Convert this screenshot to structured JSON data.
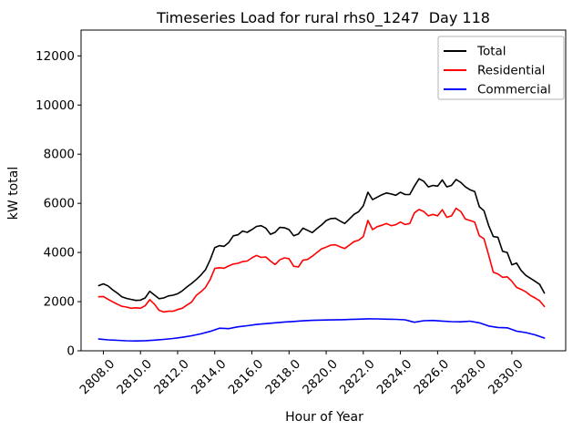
{
  "chart_data": {
    "type": "line",
    "title": "Timeseries Load for rural rhs0_1247  Day 118",
    "xlabel": "Hour of Year",
    "ylabel": "kW total",
    "xlim": [
      2806.8,
      2832.9
    ],
    "ylim": [
      0,
      13050
    ],
    "grid": false,
    "background": "#ffffff",
    "axes_color": "#000000",
    "xticks": {
      "values": [
        2808,
        2810,
        2812,
        2814,
        2816,
        2818,
        2820,
        2822,
        2824,
        2826,
        2828,
        2830
      ],
      "labels": [
        "2808.0",
        "2810.0",
        "2812.0",
        "2814.0",
        "2816.0",
        "2818.0",
        "2820.0",
        "2822.0",
        "2824.0",
        "2826.0",
        "2828.0",
        "2830.0"
      ],
      "rotation": 45
    },
    "yticks": {
      "values": [
        0,
        2000,
        4000,
        6000,
        8000,
        10000,
        12000
      ],
      "labels": [
        "0",
        "2000",
        "4000",
        "6000",
        "8000",
        "10000",
        "12000"
      ]
    },
    "legend": {
      "position": "upper right",
      "border_color": "#b3b3b3",
      "background": "#ffffff",
      "entries": [
        {
          "label": "Total",
          "color": "#000000"
        },
        {
          "label": "Residential",
          "color": "#ff0000"
        },
        {
          "label": "Commercial",
          "color": "#0000ff"
        }
      ]
    },
    "series": [
      {
        "name": "Total",
        "color": "#000000",
        "x_start": 2807.75,
        "x_step": 0.25,
        "values": [
          2650,
          2725,
          2640,
          2480,
          2350,
          2200,
          2130,
          2090,
          2050,
          2060,
          2150,
          2420,
          2270,
          2120,
          2150,
          2230,
          2260,
          2320,
          2440,
          2600,
          2740,
          2900,
          3080,
          3300,
          3700,
          4200,
          4280,
          4250,
          4400,
          4680,
          4720,
          4870,
          4820,
          4930,
          5060,
          5090,
          4990,
          4740,
          4820,
          5020,
          5010,
          4930,
          4680,
          4750,
          4990,
          4900,
          4810,
          4970,
          5120,
          5300,
          5380,
          5390,
          5280,
          5180,
          5360,
          5550,
          5660,
          5900,
          6450,
          6150,
          6250,
          6350,
          6420,
          6380,
          6330,
          6450,
          6360,
          6360,
          6700,
          7000,
          6900,
          6670,
          6730,
          6700,
          6950,
          6670,
          6730,
          6970,
          6850,
          6670,
          6550,
          6480,
          5860,
          5700,
          5100,
          4650,
          4620,
          4050,
          4000,
          3500,
          3570,
          3270,
          3070,
          2950,
          2830,
          2700,
          2350
        ]
      },
      {
        "name": "Residential",
        "color": "#ff0000",
        "x_start": 2807.75,
        "x_step": 0.25,
        "values": [
          2200,
          2210,
          2100,
          1990,
          1900,
          1810,
          1780,
          1730,
          1750,
          1730,
          1830,
          2080,
          1900,
          1650,
          1580,
          1610,
          1610,
          1680,
          1730,
          1860,
          1980,
          2250,
          2400,
          2580,
          2900,
          3350,
          3380,
          3360,
          3450,
          3530,
          3560,
          3630,
          3650,
          3780,
          3880,
          3800,
          3820,
          3650,
          3510,
          3700,
          3780,
          3750,
          3440,
          3410,
          3690,
          3720,
          3850,
          4000,
          4150,
          4220,
          4300,
          4310,
          4230,
          4160,
          4300,
          4440,
          4500,
          4650,
          5300,
          4930,
          5050,
          5110,
          5180,
          5090,
          5130,
          5240,
          5140,
          5180,
          5610,
          5750,
          5670,
          5490,
          5550,
          5490,
          5740,
          5430,
          5490,
          5800,
          5670,
          5360,
          5300,
          5240,
          4680,
          4560,
          3900,
          3200,
          3130,
          2990,
          3010,
          2830,
          2580,
          2500,
          2400,
          2250,
          2150,
          2030,
          1800
        ]
      },
      {
        "name": "Commercial",
        "color": "#0000ff",
        "x_start": 2807.75,
        "x_step": 0.5,
        "values": [
          480,
          445,
          425,
          408,
          400,
          412,
          432,
          462,
          500,
          550,
          610,
          690,
          790,
          920,
          900,
          975,
          1020,
          1070,
          1105,
          1140,
          1170,
          1195,
          1220,
          1240,
          1248,
          1255,
          1265,
          1277,
          1285,
          1300,
          1298,
          1288,
          1278,
          1262,
          1160,
          1225,
          1235,
          1210,
          1185,
          1180,
          1205,
          1140,
          1010,
          950,
          935,
          800,
          740,
          650,
          520
        ]
      }
    ]
  }
}
